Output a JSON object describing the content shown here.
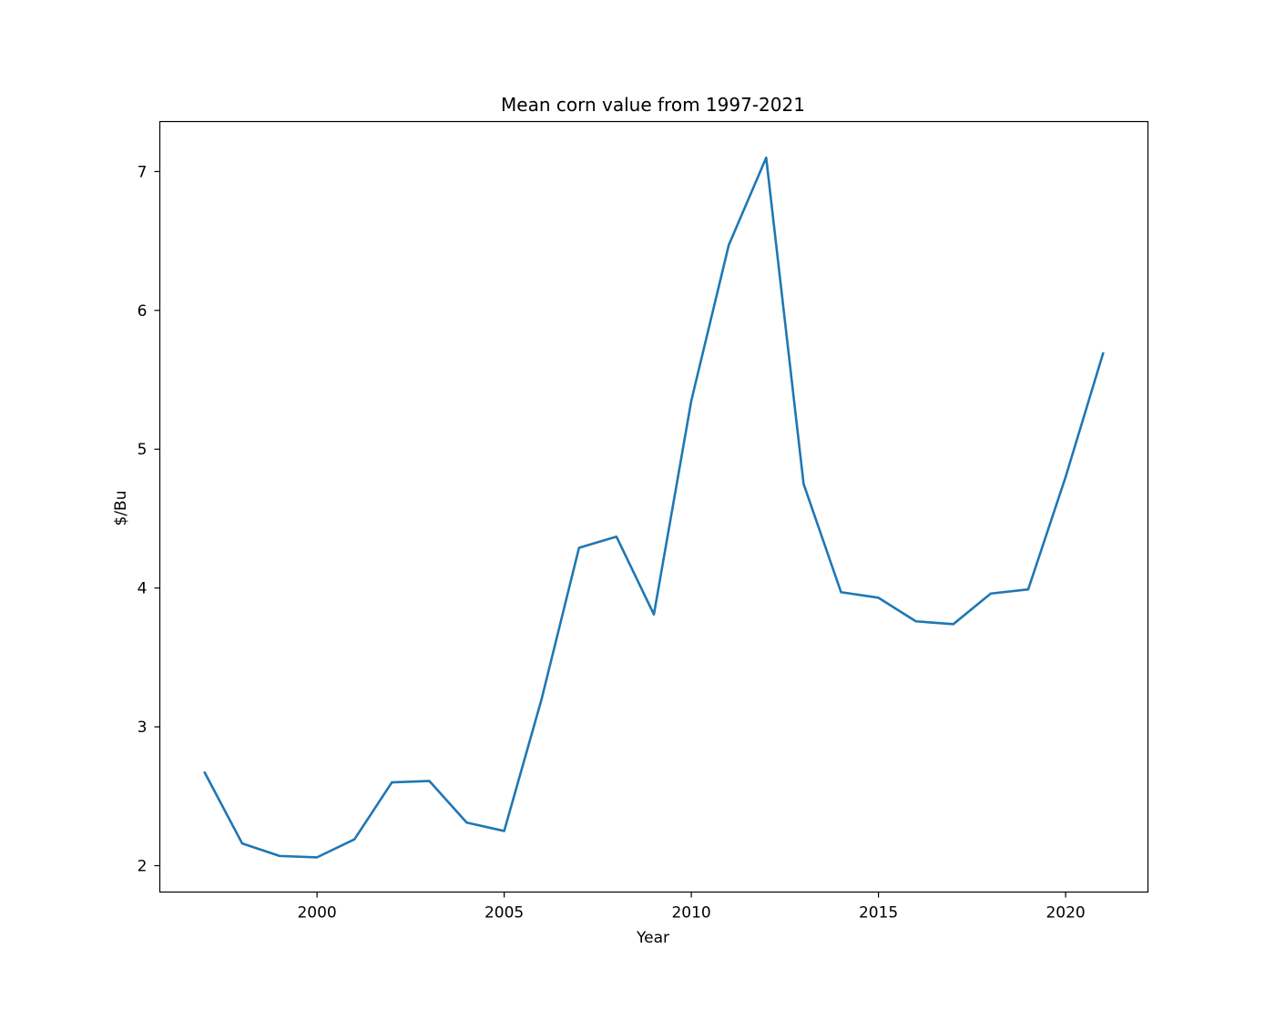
{
  "chart_data": {
    "type": "line",
    "title": "Mean corn value from 1997-2021",
    "xlabel": "Year",
    "ylabel": "$/Bu",
    "xlim": [
      1995.8,
      2022.2
    ],
    "ylim": [
      1.81,
      7.36
    ],
    "xticks": [
      2000,
      2005,
      2010,
      2015,
      2020
    ],
    "yticks": [
      2,
      3,
      4,
      5,
      6,
      7
    ],
    "grid": false,
    "legend": "none",
    "line_color": "#1f77b4",
    "series": [
      {
        "x": [
          1997,
          1998,
          1999,
          2000,
          2001,
          2002,
          2003,
          2004,
          2005,
          2006,
          2007,
          2008,
          2009,
          2010,
          2011,
          2012,
          2013,
          2014,
          2015,
          2016,
          2017,
          2018,
          2019,
          2020,
          2021
        ],
        "values": [
          2.67,
          2.16,
          2.07,
          2.06,
          2.19,
          2.6,
          2.61,
          2.31,
          2.25,
          3.2,
          4.29,
          4.37,
          3.81,
          5.35,
          6.47,
          7.1,
          4.75,
          3.97,
          3.93,
          3.76,
          3.74,
          3.96,
          3.99,
          4.8,
          5.69
        ]
      }
    ]
  }
}
